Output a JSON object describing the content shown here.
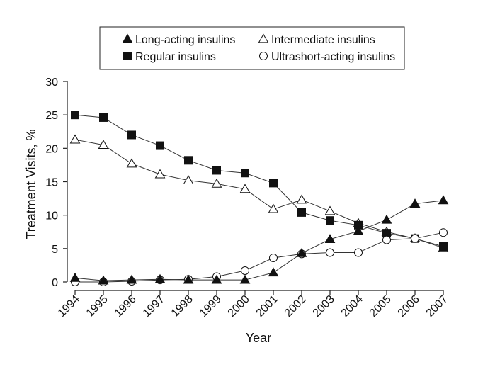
{
  "chart_data": {
    "type": "line",
    "title": "",
    "xlabel": "Year",
    "ylabel": "Treatment Visits, %",
    "categories": [
      "1994",
      "1995",
      "1996",
      "1997",
      "1998",
      "1999",
      "2000",
      "2001",
      "2002",
      "2003",
      "2004",
      "2005",
      "2006",
      "2007"
    ],
    "ylim": [
      0,
      30
    ],
    "yticks": [
      0,
      5,
      10,
      15,
      20,
      25,
      30
    ],
    "grid": false,
    "legend_position": "top",
    "series": [
      {
        "name": "Long-acting insulins",
        "marker": "filled-triangle",
        "values": [
          0.6,
          0.2,
          0.3,
          0.4,
          0.3,
          0.3,
          0.3,
          1.4,
          4.3,
          6.4,
          7.6,
          9.3,
          11.7,
          12.2
        ]
      },
      {
        "name": "Intermediate insulins",
        "marker": "open-triangle",
        "values": [
          21.3,
          20.5,
          17.7,
          16.1,
          15.2,
          14.7,
          13.9,
          10.9,
          12.3,
          10.6,
          8.8,
          7.5,
          6.5,
          5.1
        ]
      },
      {
        "name": "Regular insulins",
        "marker": "filled-square",
        "values": [
          25.0,
          24.6,
          22.0,
          20.4,
          18.2,
          16.7,
          16.3,
          14.8,
          10.4,
          9.2,
          8.5,
          7.3,
          6.5,
          5.3
        ]
      },
      {
        "name": "Ultrashort-acting insulins",
        "marker": "open-circle",
        "values": [
          0.0,
          0.0,
          0.1,
          0.3,
          0.4,
          0.8,
          1.7,
          3.6,
          4.2,
          4.4,
          4.4,
          6.3,
          6.5,
          7.4
        ]
      }
    ]
  }
}
